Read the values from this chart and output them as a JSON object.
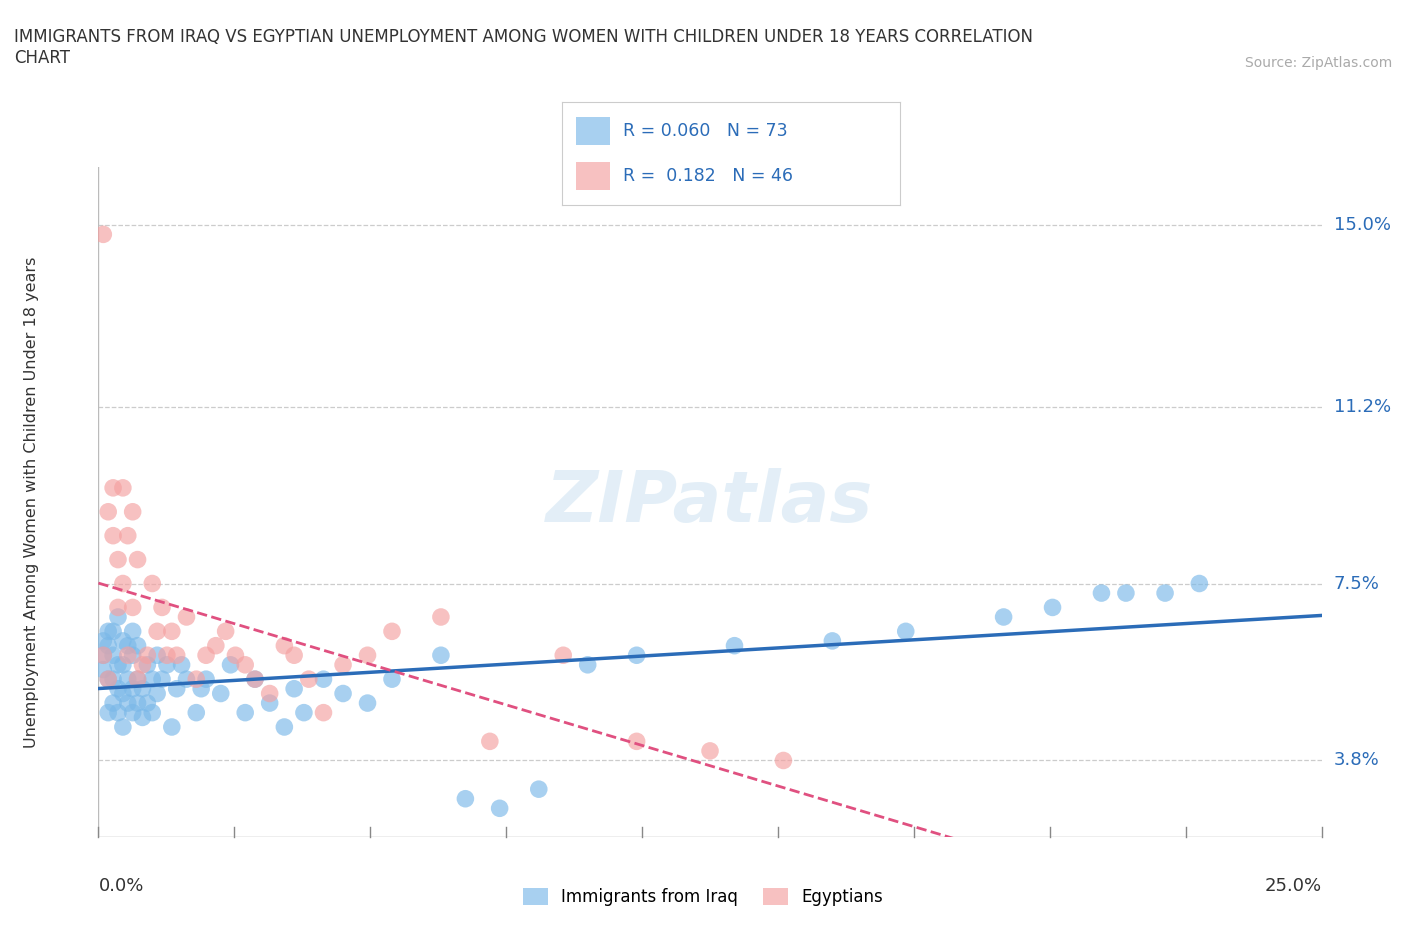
{
  "title": "IMMIGRANTS FROM IRAQ VS EGYPTIAN UNEMPLOYMENT AMONG WOMEN WITH CHILDREN UNDER 18 YEARS CORRELATION\nCHART",
  "source": "Source: ZipAtlas.com",
  "ylabel_label": "Unemployment Among Women with Children Under 18 years",
  "legend_bottom": [
    "Immigrants from Iraq",
    "Egyptians"
  ],
  "r_iraq": 0.06,
  "n_iraq": 73,
  "r_egypt": 0.182,
  "n_egypt": 46,
  "iraq_color": "#7ab8e8",
  "egypt_color": "#f4a0a0",
  "iraq_line_color": "#2b6cb8",
  "egypt_line_color": "#e05080",
  "watermark": "ZIPatlas",
  "xmin": 0.0,
  "xmax": 0.25,
  "ymin": 0.022,
  "ymax": 0.162,
  "yticks": [
    0.038,
    0.075,
    0.112,
    0.15
  ],
  "ytick_labels": [
    "3.8%",
    "7.5%",
    "11.2%",
    "15.0%"
  ],
  "xtick_labels": [
    "0.0%",
    "25.0%"
  ],
  "iraq_x": [
    0.001,
    0.001,
    0.001,
    0.002,
    0.002,
    0.002,
    0.002,
    0.003,
    0.003,
    0.003,
    0.003,
    0.004,
    0.004,
    0.004,
    0.004,
    0.005,
    0.005,
    0.005,
    0.005,
    0.006,
    0.006,
    0.006,
    0.007,
    0.007,
    0.007,
    0.007,
    0.008,
    0.008,
    0.008,
    0.009,
    0.009,
    0.01,
    0.01,
    0.011,
    0.011,
    0.012,
    0.012,
    0.013,
    0.014,
    0.015,
    0.016,
    0.017,
    0.018,
    0.02,
    0.021,
    0.022,
    0.025,
    0.027,
    0.03,
    0.032,
    0.035,
    0.038,
    0.04,
    0.042,
    0.046,
    0.05,
    0.055,
    0.06,
    0.07,
    0.075,
    0.082,
    0.09,
    0.1,
    0.11,
    0.13,
    0.15,
    0.165,
    0.185,
    0.195,
    0.205,
    0.21,
    0.218,
    0.225
  ],
  "iraq_y": [
    0.057,
    0.06,
    0.063,
    0.048,
    0.055,
    0.062,
    0.065,
    0.05,
    0.055,
    0.06,
    0.065,
    0.048,
    0.053,
    0.058,
    0.068,
    0.045,
    0.052,
    0.058,
    0.063,
    0.05,
    0.055,
    0.062,
    0.048,
    0.053,
    0.06,
    0.065,
    0.05,
    0.055,
    0.062,
    0.047,
    0.053,
    0.05,
    0.058,
    0.048,
    0.055,
    0.052,
    0.06,
    0.055,
    0.058,
    0.045,
    0.053,
    0.058,
    0.055,
    0.048,
    0.053,
    0.055,
    0.052,
    0.058,
    0.048,
    0.055,
    0.05,
    0.045,
    0.053,
    0.048,
    0.055,
    0.052,
    0.05,
    0.055,
    0.06,
    0.03,
    0.028,
    0.032,
    0.058,
    0.06,
    0.062,
    0.063,
    0.065,
    0.068,
    0.07,
    0.073,
    0.073,
    0.073,
    0.075
  ],
  "egypt_x": [
    0.001,
    0.001,
    0.002,
    0.002,
    0.003,
    0.003,
    0.004,
    0.004,
    0.005,
    0.005,
    0.006,
    0.006,
    0.007,
    0.007,
    0.008,
    0.008,
    0.009,
    0.01,
    0.011,
    0.012,
    0.013,
    0.014,
    0.015,
    0.016,
    0.018,
    0.02,
    0.022,
    0.024,
    0.026,
    0.028,
    0.03,
    0.032,
    0.035,
    0.038,
    0.04,
    0.043,
    0.046,
    0.05,
    0.055,
    0.06,
    0.07,
    0.08,
    0.095,
    0.11,
    0.125,
    0.14
  ],
  "egypt_y": [
    0.148,
    0.06,
    0.09,
    0.055,
    0.085,
    0.095,
    0.07,
    0.08,
    0.075,
    0.095,
    0.06,
    0.085,
    0.07,
    0.09,
    0.055,
    0.08,
    0.058,
    0.06,
    0.075,
    0.065,
    0.07,
    0.06,
    0.065,
    0.06,
    0.068,
    0.055,
    0.06,
    0.062,
    0.065,
    0.06,
    0.058,
    0.055,
    0.052,
    0.062,
    0.06,
    0.055,
    0.048,
    0.058,
    0.06,
    0.065,
    0.068,
    0.042,
    0.06,
    0.042,
    0.04,
    0.038
  ]
}
